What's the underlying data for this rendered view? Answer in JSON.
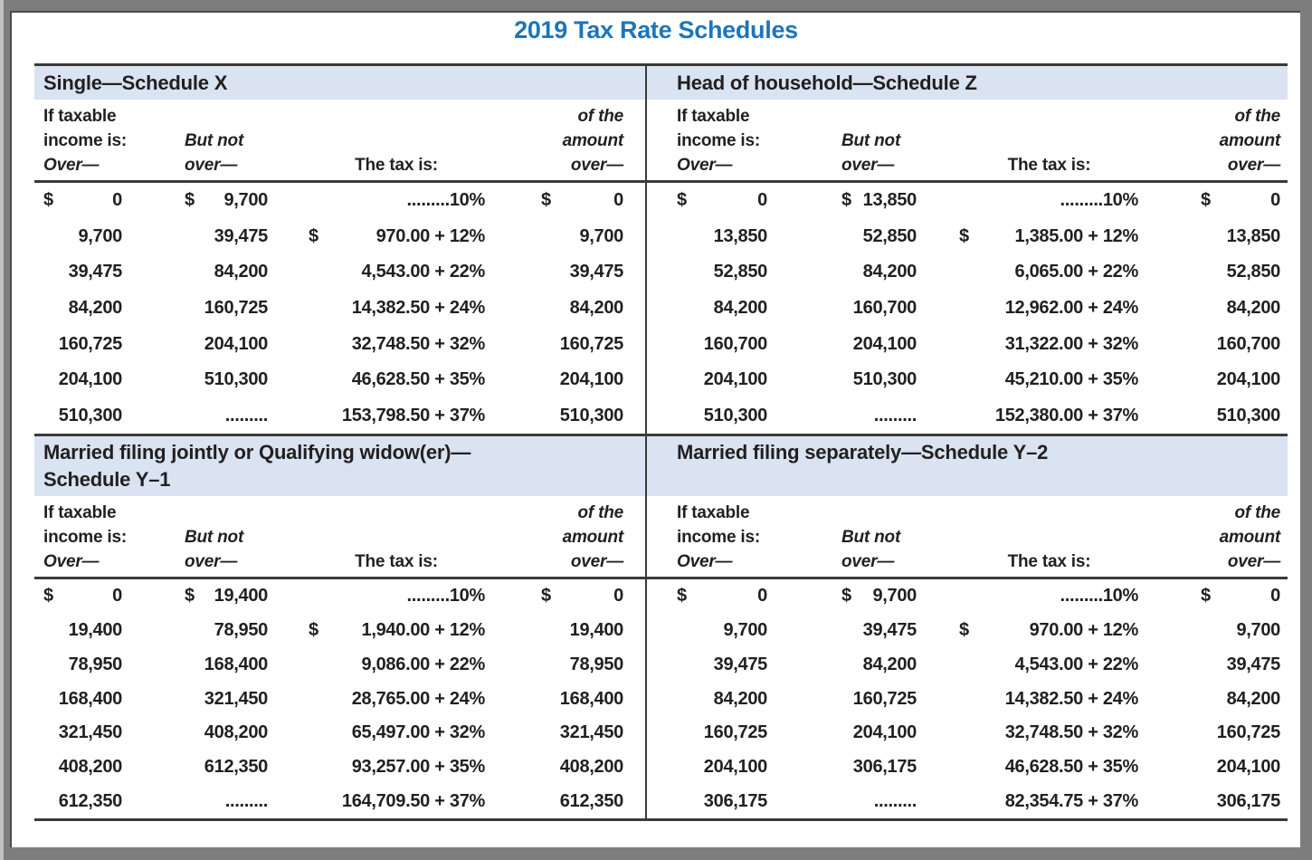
{
  "page": {
    "title": "2019 Tax Rate Schedules"
  },
  "colors": {
    "title_blue": "#1c75bc",
    "band_blue": "#d9e3f1",
    "ink": "#231f20",
    "rule": "#3a3a3a",
    "frame_gray": "#7d7d7d"
  },
  "columns": {
    "c1l1": "If taxable",
    "c1l2": "income is:",
    "c1l3": "Over—",
    "c2l1": "But not",
    "c2l2": "over—",
    "c3": "The tax is:",
    "c4l1": "of the",
    "c4l2": "amount",
    "c4l3": "over—"
  },
  "schedules": [
    {
      "title": "Single—Schedule X",
      "title2": "",
      "rows": [
        {
          "od": "$",
          "o": "0",
          "bd": "$",
          "b": "9,700",
          "td": "",
          "t": ".........10%",
          "ad": "$",
          "a": "0"
        },
        {
          "od": "",
          "o": "9,700",
          "bd": "",
          "b": "39,475",
          "td": "$",
          "t": "970.00 + 12%",
          "ad": "",
          "a": "9,700"
        },
        {
          "od": "",
          "o": "39,475",
          "bd": "",
          "b": "84,200",
          "td": "",
          "t": "4,543.00 + 22%",
          "ad": "",
          "a": "39,475"
        },
        {
          "od": "",
          "o": "84,200",
          "bd": "",
          "b": "160,725",
          "td": "",
          "t": "14,382.50 + 24%",
          "ad": "",
          "a": "84,200"
        },
        {
          "od": "",
          "o": "160,725",
          "bd": "",
          "b": "204,100",
          "td": "",
          "t": "32,748.50 + 32%",
          "ad": "",
          "a": "160,725"
        },
        {
          "od": "",
          "o": "204,100",
          "bd": "",
          "b": "510,300",
          "td": "",
          "t": "46,628.50 + 35%",
          "ad": "",
          "a": "204,100"
        },
        {
          "od": "",
          "o": "510,300",
          "bd": "",
          "b": ".........",
          "td": "",
          "t": "153,798.50 + 37%",
          "ad": "",
          "a": "510,300"
        }
      ]
    },
    {
      "title": "Head of household—Schedule Z",
      "title2": "",
      "rows": [
        {
          "od": "$",
          "o": "0",
          "bd": "$",
          "b": "13,850",
          "td": "",
          "t": ".........10%",
          "ad": "$",
          "a": "0"
        },
        {
          "od": "",
          "o": "13,850",
          "bd": "",
          "b": "52,850",
          "td": "$",
          "t": "1,385.00 + 12%",
          "ad": "",
          "a": "13,850"
        },
        {
          "od": "",
          "o": "52,850",
          "bd": "",
          "b": "84,200",
          "td": "",
          "t": "6,065.00 + 22%",
          "ad": "",
          "a": "52,850"
        },
        {
          "od": "",
          "o": "84,200",
          "bd": "",
          "b": "160,700",
          "td": "",
          "t": "12,962.00 + 24%",
          "ad": "",
          "a": "84,200"
        },
        {
          "od": "",
          "o": "160,700",
          "bd": "",
          "b": "204,100",
          "td": "",
          "t": "31,322.00 + 32%",
          "ad": "",
          "a": "160,700"
        },
        {
          "od": "",
          "o": "204,100",
          "bd": "",
          "b": "510,300",
          "td": "",
          "t": "45,210.00 + 35%",
          "ad": "",
          "a": "204,100"
        },
        {
          "od": "",
          "o": "510,300",
          "bd": "",
          "b": ".........",
          "td": "",
          "t": "152,380.00 + 37%",
          "ad": "",
          "a": "510,300"
        }
      ]
    },
    {
      "title": "Married filing jointly or Qualifying widow(er)—",
      "title2": "Schedule Y–1",
      "rows": [
        {
          "od": "$",
          "o": "0",
          "bd": "$",
          "b": "19,400",
          "td": "",
          "t": ".........10%",
          "ad": "$",
          "a": "0"
        },
        {
          "od": "",
          "o": "19,400",
          "bd": "",
          "b": "78,950",
          "td": "$",
          "t": "1,940.00 + 12%",
          "ad": "",
          "a": "19,400"
        },
        {
          "od": "",
          "o": "78,950",
          "bd": "",
          "b": "168,400",
          "td": "",
          "t": "9,086.00 + 22%",
          "ad": "",
          "a": "78,950"
        },
        {
          "od": "",
          "o": "168,400",
          "bd": "",
          "b": "321,450",
          "td": "",
          "t": "28,765.00 + 24%",
          "ad": "",
          "a": "168,400"
        },
        {
          "od": "",
          "o": "321,450",
          "bd": "",
          "b": "408,200",
          "td": "",
          "t": "65,497.00 + 32%",
          "ad": "",
          "a": "321,450"
        },
        {
          "od": "",
          "o": "408,200",
          "bd": "",
          "b": "612,350",
          "td": "",
          "t": "93,257.00 + 35%",
          "ad": "",
          "a": "408,200"
        },
        {
          "od": "",
          "o": "612,350",
          "bd": "",
          "b": ".........",
          "td": "",
          "t": "164,709.50 + 37%",
          "ad": "",
          "a": "612,350"
        }
      ]
    },
    {
      "title": "Married filing separately—Schedule Y–2",
      "title2": "",
      "rows": [
        {
          "od": "$",
          "o": "0",
          "bd": "$",
          "b": "9,700",
          "td": "",
          "t": ".........10%",
          "ad": "$",
          "a": "0"
        },
        {
          "od": "",
          "o": "9,700",
          "bd": "",
          "b": "39,475",
          "td": "$",
          "t": "970.00 + 12%",
          "ad": "",
          "a": "9,700"
        },
        {
          "od": "",
          "o": "39,475",
          "bd": "",
          "b": "84,200",
          "td": "",
          "t": "4,543.00 + 22%",
          "ad": "",
          "a": "39,475"
        },
        {
          "od": "",
          "o": "84,200",
          "bd": "",
          "b": "160,725",
          "td": "",
          "t": "14,382.50 + 24%",
          "ad": "",
          "a": "84,200"
        },
        {
          "od": "",
          "o": "160,725",
          "bd": "",
          "b": "204,100",
          "td": "",
          "t": "32,748.50 + 32%",
          "ad": "",
          "a": "160,725"
        },
        {
          "od": "",
          "o": "204,100",
          "bd": "",
          "b": "306,175",
          "td": "",
          "t": "46,628.50 + 35%",
          "ad": "",
          "a": "204,100"
        },
        {
          "od": "",
          "o": "306,175",
          "bd": "",
          "b": ".........",
          "td": "",
          "t": "82,354.75 + 37%",
          "ad": "",
          "a": "306,175"
        }
      ]
    }
  ]
}
